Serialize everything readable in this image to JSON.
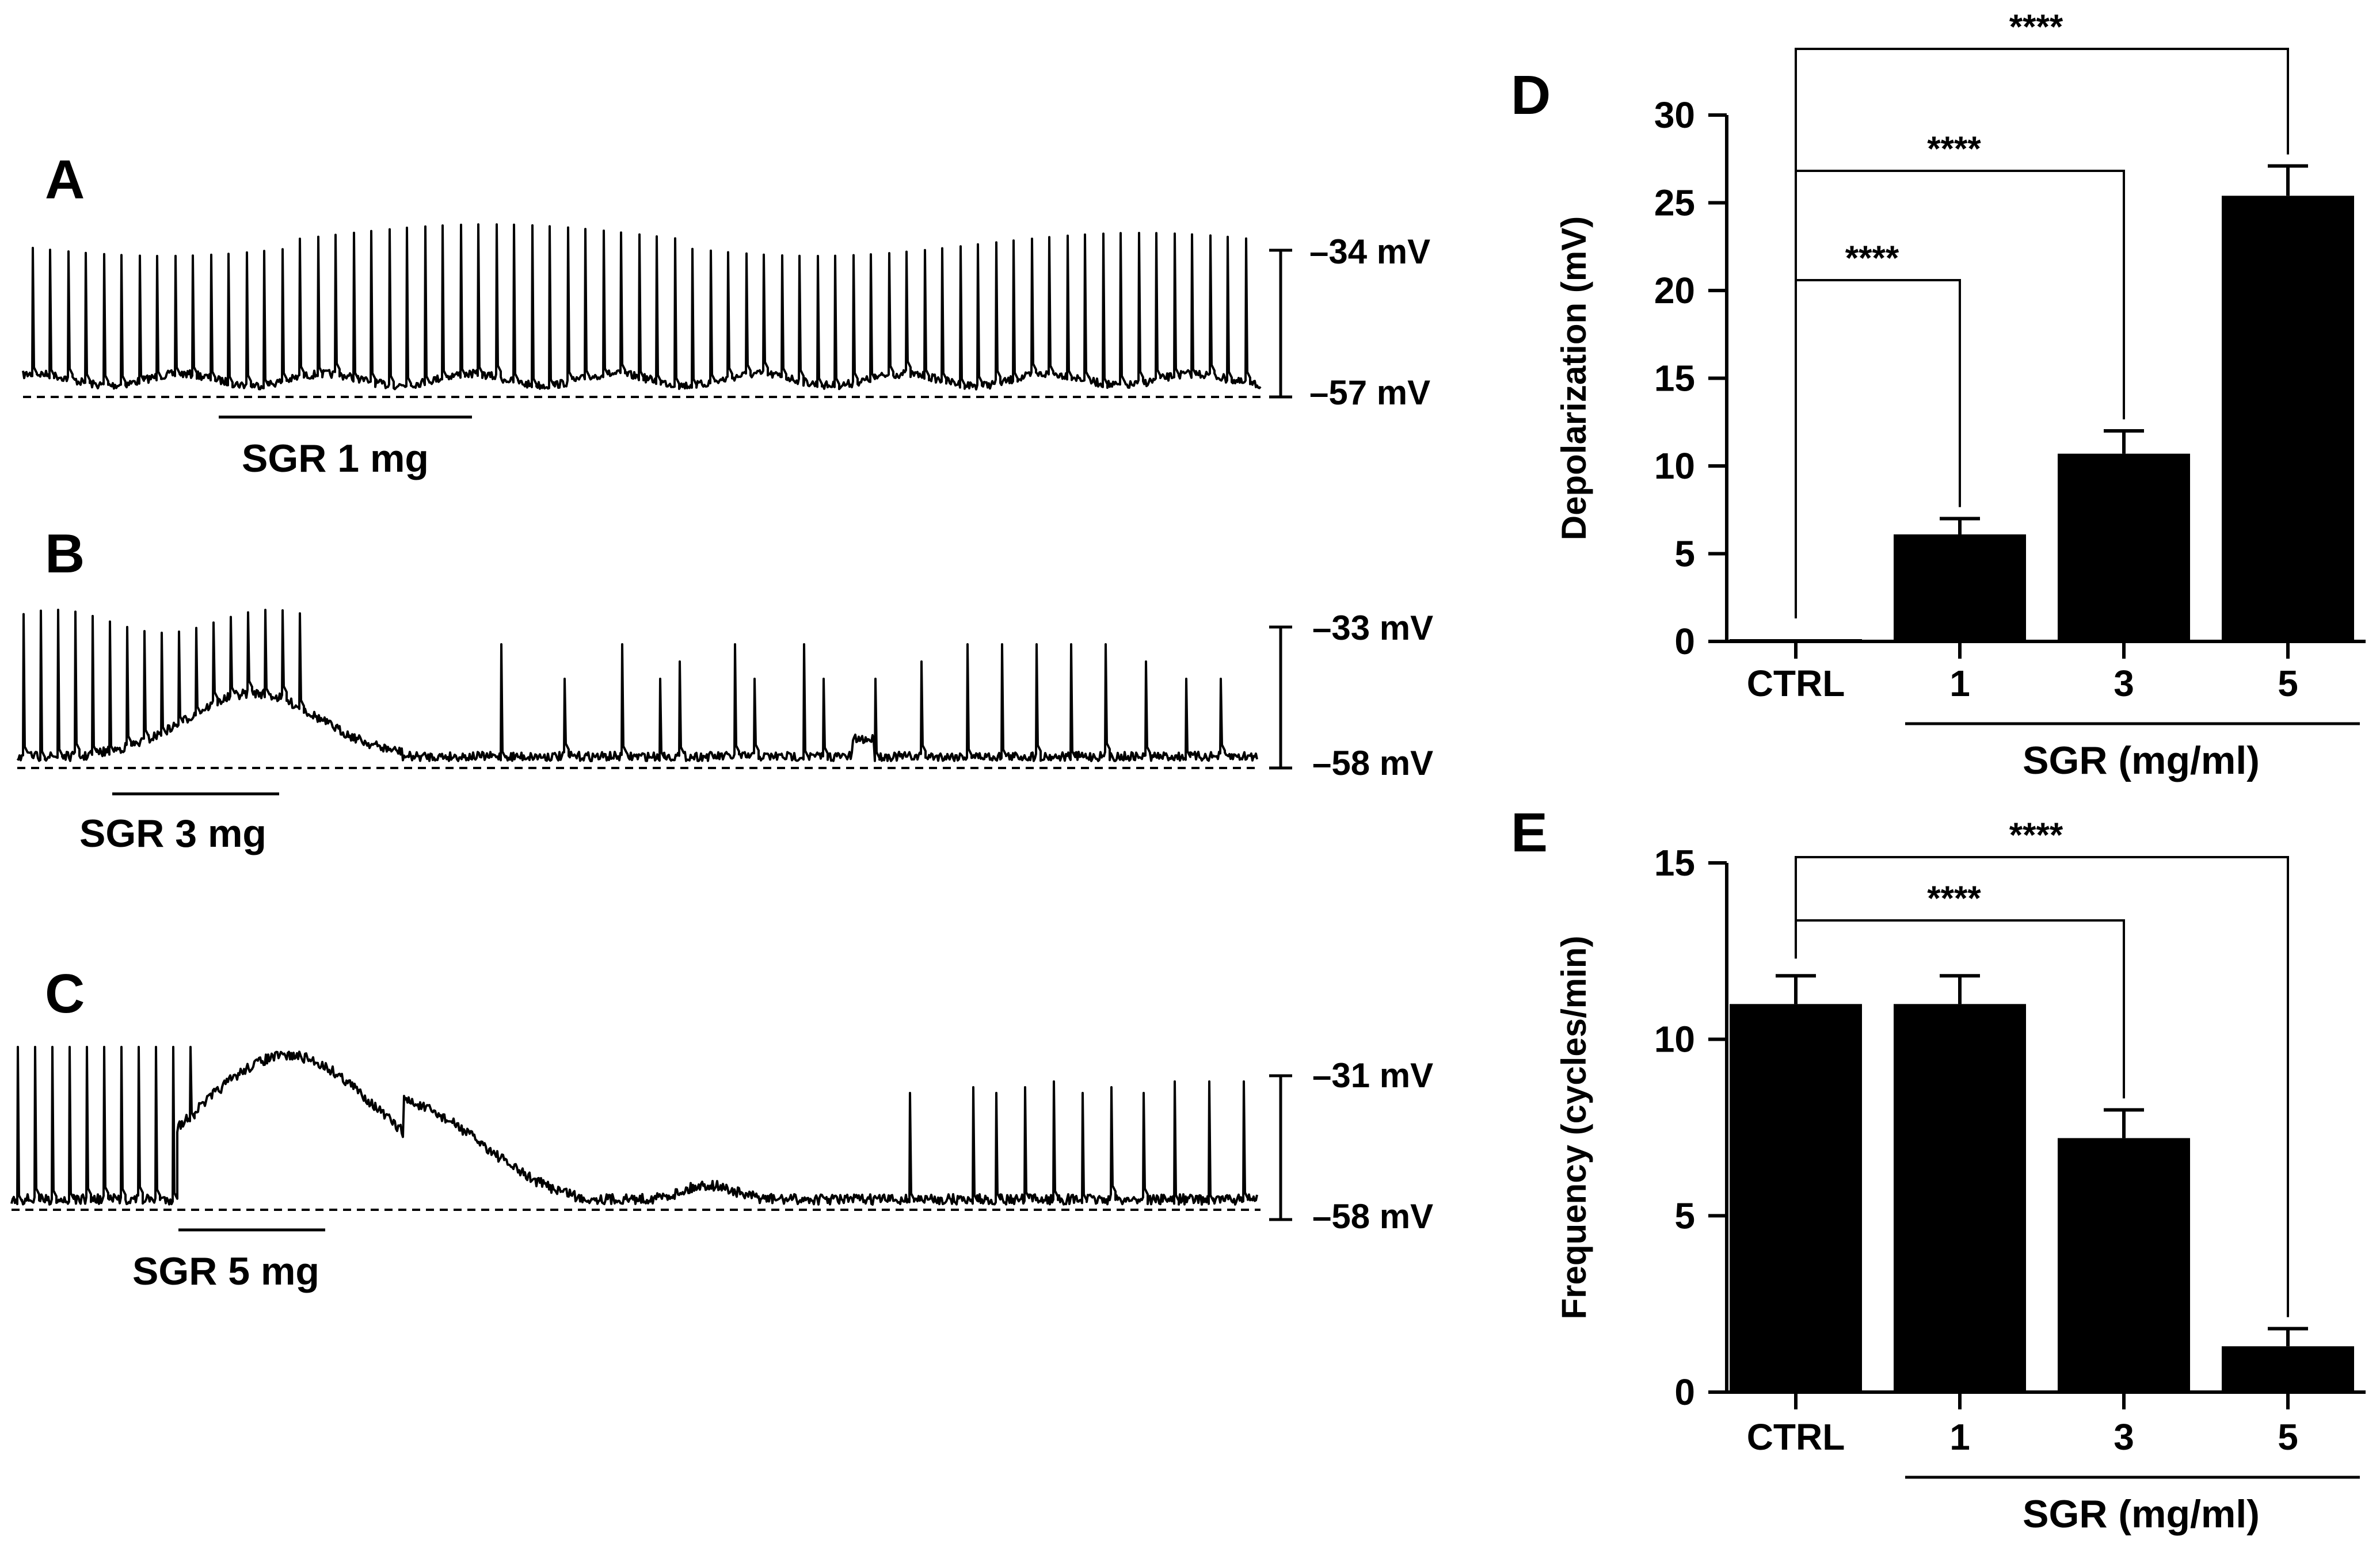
{
  "colors": {
    "ink": "#000000",
    "background": "#ffffff"
  },
  "traces": [
    {
      "panel_label": "A",
      "drug_label": "SGR 1 mg",
      "top_voltage": "–34 mV",
      "bottom_voltage": "–57 mV"
    },
    {
      "panel_label": "B",
      "drug_label": "SGR 3 mg",
      "top_voltage": "–33 mV",
      "bottom_voltage": "–58 mV"
    },
    {
      "panel_label": "C",
      "drug_label": "SGR 5 mg",
      "top_voltage": "–31 mV",
      "bottom_voltage": "–58 mV"
    }
  ],
  "chart_data": [
    {
      "panel_label": "D",
      "type": "bar",
      "title": "",
      "xlabel": "SGR (mg/ml)",
      "ylabel": "Depolarization (mV)",
      "categories": [
        "CTRL",
        "1",
        "3",
        "5"
      ],
      "values": [
        0,
        6.1,
        10.7,
        25.4
      ],
      "errors": [
        0,
        0.9,
        1.3,
        1.7
      ],
      "ylim": [
        0,
        30
      ],
      "yticks": [
        0,
        5,
        10,
        15,
        20,
        25,
        30
      ],
      "grid": false,
      "significance": [
        {
          "from": "CTRL",
          "to": "1",
          "label": "****"
        },
        {
          "from": "CTRL",
          "to": "3",
          "label": "****"
        },
        {
          "from": "CTRL",
          "to": "5",
          "label": "****"
        }
      ]
    },
    {
      "panel_label": "E",
      "type": "bar",
      "title": "",
      "xlabel": "SGR (mg/ml)",
      "ylabel": "Frequency (cycles/min)",
      "categories": [
        "CTRL",
        "1",
        "3",
        "5"
      ],
      "values": [
        11.0,
        11.0,
        7.2,
        1.3
      ],
      "errors": [
        0.8,
        0.8,
        0.8,
        0.5
      ],
      "ylim": [
        0,
        15
      ],
      "yticks": [
        0,
        5,
        10,
        15
      ],
      "grid": false,
      "significance": [
        {
          "from": "CTRL",
          "to": "3",
          "label": "****"
        },
        {
          "from": "CTRL",
          "to": "5",
          "label": "****"
        }
      ]
    }
  ]
}
